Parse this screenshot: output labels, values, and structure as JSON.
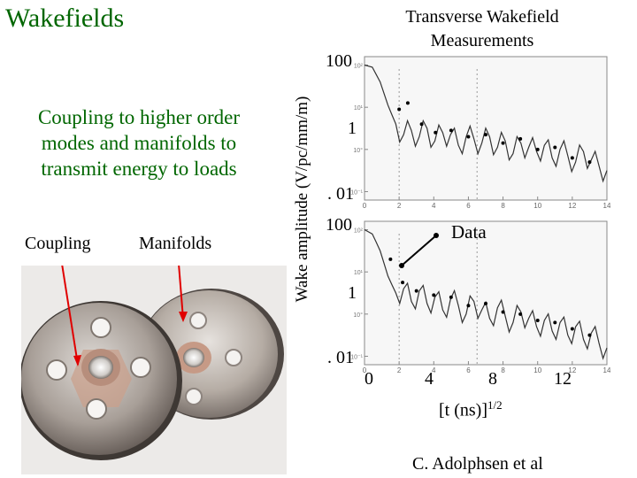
{
  "slide": {
    "title": "Wakefields",
    "body_text": "Coupling to higher order modes and manifolds to transmit energy to loads",
    "photo_labels": {
      "coupling": "Coupling",
      "manifolds": "Manifolds"
    },
    "credit": "C. Adolphsen et al",
    "accent_color": "#006600"
  },
  "chart_data": {
    "type": "line",
    "title": "Transverse Wakefield Measurements",
    "ylabel": "Wake amplitude (V/pc/mm/m)",
    "xlabel": "[t (ns)]",
    "xlabel_superscript": "1/2",
    "y_ticks_top": [
      "100",
      "1",
      ". 01"
    ],
    "y_ticks_bottom": [
      "100",
      "1",
      ". 01"
    ],
    "x_ticks": [
      "0",
      "4",
      "8",
      "12"
    ],
    "inner_x_ticks": [
      "0",
      "2",
      "4",
      "6",
      "8",
      "10",
      "12",
      "14"
    ],
    "inner_y_ticks": [
      "10²",
      "10¹",
      "10°",
      "10⁻¹"
    ],
    "annotation": "Data",
    "xlim": [
      0,
      14
    ],
    "y_scale": "log",
    "panels": [
      {
        "name": "top",
        "series": [
          {
            "values_log10": [
              2.0,
              1.95,
              1.6,
              1.05,
              0.6,
              0.35,
              0.45,
              0.3,
              0.5,
              0.2,
              0.4,
              0.35,
              0.1,
              0.3,
              0.25,
              0.15,
              0.3,
              0.05,
              0.2,
              -0.1,
              0.15,
              0.05,
              -0.05,
              0.1,
              -0.2,
              0.0,
              -0.15,
              -0.3,
              -0.05,
              -0.25,
              -0.4,
              -0.5
            ]
          }
        ],
        "points": [
          {
            "x": 2.0,
            "y_log10": 0.95
          },
          {
            "x": 2.5,
            "y_log10": 1.1
          },
          {
            "x": 3.3,
            "y_log10": 0.6
          },
          {
            "x": 4.1,
            "y_log10": 0.4
          },
          {
            "x": 5.0,
            "y_log10": 0.45
          },
          {
            "x": 6.0,
            "y_log10": 0.3
          },
          {
            "x": 7.0,
            "y_log10": 0.35
          },
          {
            "x": 8.0,
            "y_log10": 0.15
          },
          {
            "x": 9.0,
            "y_log10": 0.25
          },
          {
            "x": 10.0,
            "y_log10": 0.0
          },
          {
            "x": 11.0,
            "y_log10": 0.05
          },
          {
            "x": 12.0,
            "y_log10": -0.2
          },
          {
            "x": 13.0,
            "y_log10": -0.3
          }
        ]
      },
      {
        "name": "bottom",
        "series": [
          {
            "values_log10": [
              2.0,
              1.9,
              1.5,
              0.9,
              0.5,
              0.6,
              0.3,
              0.55,
              0.25,
              0.4,
              0.1,
              0.35,
              0.2,
              0.0,
              0.3,
              0.1,
              -0.1,
              0.15,
              -0.05,
              -0.2,
              0.05,
              -0.1,
              -0.3,
              -0.15,
              -0.4,
              -0.2,
              -0.5,
              -0.3,
              -0.6,
              -0.45,
              -0.7,
              -0.8
            ]
          }
        ],
        "points": [
          {
            "x": 1.5,
            "y_log10": 1.3
          },
          {
            "x": 2.2,
            "y_log10": 0.75
          },
          {
            "x": 3.0,
            "y_log10": 0.55
          },
          {
            "x": 4.0,
            "y_log10": 0.45
          },
          {
            "x": 5.0,
            "y_log10": 0.4
          },
          {
            "x": 6.0,
            "y_log10": 0.2
          },
          {
            "x": 7.0,
            "y_log10": 0.25
          },
          {
            "x": 8.0,
            "y_log10": 0.05
          },
          {
            "x": 9.0,
            "y_log10": 0.0
          },
          {
            "x": 10.0,
            "y_log10": -0.15
          },
          {
            "x": 11.0,
            "y_log10": -0.2
          },
          {
            "x": 12.0,
            "y_log10": -0.35
          },
          {
            "x": 13.0,
            "y_log10": -0.5
          }
        ]
      }
    ]
  }
}
